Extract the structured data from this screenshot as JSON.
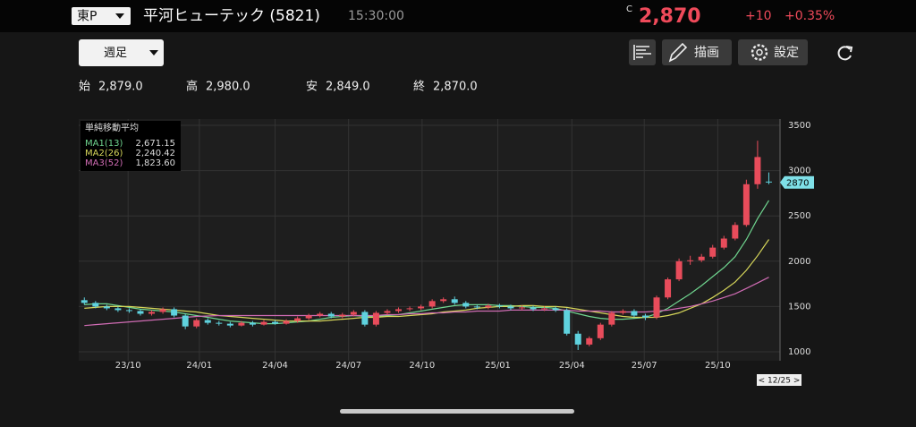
{
  "header": {
    "market": "東P",
    "name": "平河ヒューテック (5821)",
    "time": "15:30:00",
    "c_mark": "C",
    "price": "2,870",
    "change": "+10",
    "change_pct": "+0.35%"
  },
  "toolbar": {
    "period": "週足",
    "draw": "描画",
    "settings": "設定"
  },
  "ohlc": [
    {
      "label": "始",
      "value": "2,879.0"
    },
    {
      "label": "高",
      "value": "2,980.0"
    },
    {
      "label": "安",
      "value": "2,849.0"
    },
    {
      "label": "終",
      "value": "2,870.0"
    }
  ],
  "chart_data": {
    "type": "candlestick",
    "legend_title": "単純移動平均",
    "up_color": "#e84c5b",
    "down_color": "#5fd2de",
    "x": [
      0,
      2,
      4,
      6,
      8,
      10,
      12,
      14,
      16,
      18,
      20,
      22,
      24,
      26,
      28,
      30,
      32,
      34,
      36,
      38,
      40,
      42,
      44,
      46,
      48,
      50,
      52,
      54,
      56,
      58,
      60,
      62,
      64,
      66,
      68,
      70,
      72,
      74,
      76,
      78,
      80,
      82,
      84,
      86,
      88,
      90,
      92,
      94,
      96,
      98,
      100,
      102,
      104,
      106,
      108,
      110,
      112,
      114,
      116,
      118,
      120,
      122
    ],
    "open": [
      1570,
      1540,
      1500,
      1480,
      1460,
      1450,
      1420,
      1440,
      1470,
      1400,
      1280,
      1350,
      1320,
      1310,
      1290,
      1320,
      1300,
      1330,
      1310,
      1340,
      1370,
      1400,
      1420,
      1390,
      1410,
      1440,
      1300,
      1430,
      1450,
      1470,
      1480,
      1500,
      1560,
      1580,
      1540,
      1500,
      1490,
      1510,
      1500,
      1480,
      1490,
      1470,
      1480,
      1460,
      1200,
      1080,
      1150,
      1300,
      1430,
      1450,
      1400,
      1380,
      1600,
      1800,
      2000,
      2010,
      2050,
      2150,
      2250,
      2400,
      2850,
      2879
    ],
    "high": [
      1600,
      1560,
      1520,
      1500,
      1480,
      1470,
      1460,
      1490,
      1490,
      1420,
      1370,
      1370,
      1340,
      1330,
      1340,
      1340,
      1350,
      1350,
      1360,
      1390,
      1420,
      1440,
      1440,
      1430,
      1460,
      1460,
      1450,
      1470,
      1490,
      1500,
      1520,
      1580,
      1600,
      1610,
      1560,
      1520,
      1530,
      1530,
      1520,
      1510,
      1510,
      1500,
      1500,
      1480,
      1230,
      1170,
      1320,
      1450,
      1470,
      1470,
      1420,
      1620,
      1820,
      2030,
      2060,
      2080,
      2180,
      2280,
      2430,
      2900,
      3330,
      2980
    ],
    "low": [
      1520,
      1480,
      1460,
      1440,
      1430,
      1400,
      1400,
      1420,
      1380,
      1250,
      1260,
      1300,
      1290,
      1270,
      1280,
      1280,
      1290,
      1300,
      1300,
      1320,
      1350,
      1380,
      1370,
      1370,
      1390,
      1280,
      1280,
      1410,
      1430,
      1450,
      1460,
      1480,
      1540,
      1520,
      1480,
      1470,
      1470,
      1480,
      1460,
      1460,
      1450,
      1450,
      1440,
      1180,
      1020,
      1060,
      1130,
      1280,
      1410,
      1380,
      1350,
      1360,
      1580,
      1780,
      1960,
      1990,
      2030,
      2130,
      2230,
      2380,
      2800,
      2849
    ],
    "close": [
      1540,
      1500,
      1480,
      1460,
      1450,
      1420,
      1440,
      1470,
      1400,
      1280,
      1350,
      1320,
      1310,
      1290,
      1320,
      1300,
      1330,
      1310,
      1340,
      1370,
      1400,
      1420,
      1390,
      1410,
      1440,
      1300,
      1430,
      1450,
      1470,
      1480,
      1500,
      1560,
      1580,
      1540,
      1500,
      1490,
      1510,
      1500,
      1480,
      1490,
      1470,
      1480,
      1460,
      1200,
      1080,
      1150,
      1300,
      1430,
      1450,
      1400,
      1380,
      1600,
      1800,
      2000,
      2010,
      2050,
      2150,
      2250,
      2400,
      2850,
      3150,
      2870
    ],
    "last_label": "2870",
    "series": [
      {
        "name": "MA1(13)",
        "legend_value": "2,671.15",
        "color": "#6fd58f",
        "values": [
          1520,
          1530,
          1530,
          1510,
          1490,
          1470,
          1460,
          1450,
          1440,
          1420,
          1400,
          1380,
          1360,
          1340,
          1330,
          1320,
          1310,
          1310,
          1320,
          1330,
          1340,
          1360,
          1380,
          1390,
          1400,
          1390,
          1390,
          1400,
          1410,
          1430,
          1450,
          1470,
          1490,
          1510,
          1520,
          1520,
          1520,
          1510,
          1510,
          1500,
          1490,
          1490,
          1480,
          1450,
          1420,
          1390,
          1370,
          1360,
          1360,
          1370,
          1380,
          1420,
          1480,
          1560,
          1640,
          1730,
          1830,
          1930,
          2050,
          2240,
          2470,
          2671.15
        ]
      },
      {
        "name": "MA2(26)",
        "legend_value": "2,240.42",
        "color": "#d6d65a",
        "values": [
          1480,
          1490,
          1500,
          1500,
          1500,
          1490,
          1480,
          1470,
          1460,
          1450,
          1440,
          1420,
          1400,
          1390,
          1380,
          1370,
          1360,
          1350,
          1340,
          1340,
          1340,
          1340,
          1350,
          1360,
          1370,
          1380,
          1380,
          1390,
          1390,
          1400,
          1410,
          1420,
          1440,
          1450,
          1460,
          1480,
          1490,
          1500,
          1500,
          1510,
          1510,
          1500,
          1500,
          1490,
          1470,
          1450,
          1430,
          1410,
          1390,
          1380,
          1380,
          1380,
          1400,
          1430,
          1480,
          1530,
          1600,
          1680,
          1770,
          1900,
          2060,
          2240.42
        ]
      },
      {
        "name": "MA3(52)",
        "legend_value": "1,823.60",
        "color": "#d06cb4",
        "values": [
          1290,
          1300,
          1310,
          1320,
          1330,
          1340,
          1350,
          1360,
          1370,
          1380,
          1390,
          1395,
          1400,
          1400,
          1400,
          1400,
          1400,
          1400,
          1400,
          1400,
          1400,
          1400,
          1400,
          1400,
          1400,
          1400,
          1400,
          1410,
          1410,
          1420,
          1420,
          1430,
          1430,
          1440,
          1440,
          1450,
          1450,
          1450,
          1460,
          1460,
          1460,
          1460,
          1460,
          1460,
          1450,
          1450,
          1450,
          1440,
          1440,
          1440,
          1440,
          1450,
          1460,
          1480,
          1500,
          1530,
          1560,
          1600,
          1640,
          1700,
          1760,
          1823.6
        ]
      }
    ],
    "xlim": [
      -1,
      124
    ],
    "ylim": [
      1000,
      3500
    ],
    "yticks": [
      1000,
      1500,
      2000,
      2500,
      3000,
      3500
    ],
    "xticks": [
      {
        "value": 7.8,
        "label": "23/10"
      },
      {
        "value": 20.5,
        "label": "24/01"
      },
      {
        "value": 34,
        "label": "24/04"
      },
      {
        "value": 47.1,
        "label": "24/07"
      },
      {
        "value": 60.2,
        "label": "24/10"
      },
      {
        "value": 73.7,
        "label": "25/01"
      },
      {
        "value": 86.9,
        "label": "25/04"
      },
      {
        "value": 99.8,
        "label": "25/07"
      },
      {
        "value": 112.9,
        "label": "25/10"
      }
    ],
    "grid": true,
    "date_label": "< 12/25 >"
  }
}
